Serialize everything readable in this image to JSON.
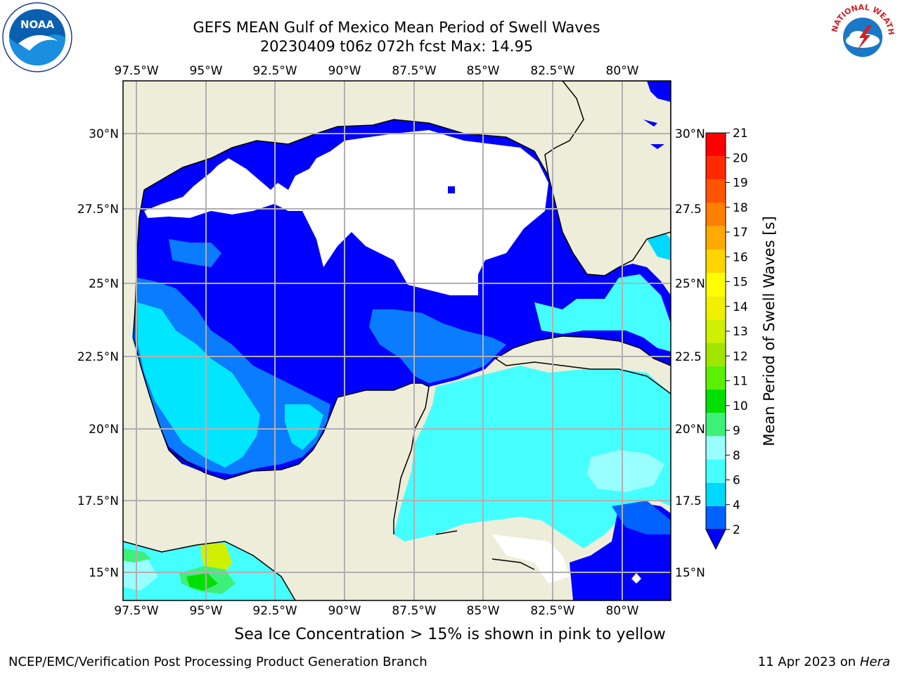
{
  "header": {
    "title": "GEFS MEAN Gulf of Mexico Mean Period of Swell Waves",
    "subtitle": "20230409 t06z 072h fcst   Max: 14.95"
  },
  "logos": {
    "left": {
      "icon": "noaa-logo-icon",
      "text": "NOAA"
    },
    "right": {
      "icon": "nws-logo-icon",
      "text": "NATIONAL WEATHER SERVICE"
    }
  },
  "map": {
    "lon_ticks": [
      "97.5°W",
      "95°W",
      "92.5°W",
      "90°W",
      "87.5°W",
      "85°W",
      "82.5°W",
      "80°W"
    ],
    "lat_ticks": [
      "30°N",
      "27.5°N",
      "25°N",
      "22.5°N",
      "20°N",
      "17.5°N",
      "15°N"
    ],
    "lat_ticks_right": [
      "30°N",
      "27.5",
      "25°N",
      "22.5",
      "20°N",
      "17.5",
      "15°N"
    ],
    "colors": {
      "land": "#eeedda",
      "no_data": "#ffffff",
      "grid": "#b0b0b0"
    }
  },
  "colorbar": {
    "label": "Mean Period of Swell Waves [s]",
    "ticks": [
      "2",
      "4",
      "6",
      "8",
      "9",
      "10",
      "11",
      "12",
      "13",
      "14",
      "15",
      "16",
      "17",
      "18",
      "19",
      "20",
      "21"
    ],
    "colors": [
      "#0063ff",
      "#00d9ff",
      "#45ffff",
      "#9affff",
      "#3ef07a",
      "#00e000",
      "#5af000",
      "#a0e600",
      "#cff000",
      "#f0f000",
      "#ffff00",
      "#ffd400",
      "#ffaa00",
      "#ff8000",
      "#ff5500",
      "#ff2a00",
      "#ff0000"
    ],
    "under_color": "#0000ff"
  },
  "note": "Sea Ice Concentration > 15% is shown in pink to yellow",
  "footer": {
    "left": "NCEP/EMC/Verification Post Processing Product Generation Branch",
    "date": "11 Apr 2023 on ",
    "machine": "Hera"
  }
}
